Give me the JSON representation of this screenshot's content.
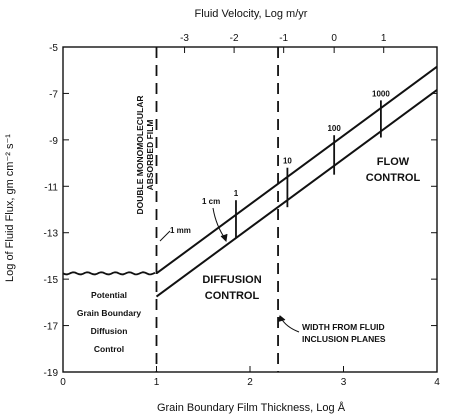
{
  "chart_data": {
    "type": "line",
    "xlabel": "Grain Boundary Film Thickness, Log Å",
    "ylabel": "Log of Fluid Flux, gm cm⁻² s⁻¹",
    "top_xlabel": "Fluid Velocity, Log m/yr",
    "xlim": [
      0,
      4
    ],
    "ylim": [
      -19,
      -5
    ],
    "x_ticks": [
      "0",
      "1",
      "2",
      "3",
      "4"
    ],
    "y_ticks": [
      "-5",
      "-7",
      "-9",
      "-11",
      "-13",
      "-15",
      "-17",
      "-19"
    ],
    "top_ticks": [
      {
        "label": "-3",
        "x": 1.3
      },
      {
        "label": "-2",
        "x": 1.83
      },
      {
        "label": "-1",
        "x": 2.36
      },
      {
        "label": "0",
        "x": 2.9
      },
      {
        "label": "1",
        "x": 3.43
      }
    ],
    "series": [
      {
        "x": [
          1.0,
          4.0
        ],
        "y": [
          -14.75,
          -5.85
        ]
      },
      {
        "x": [
          1.0,
          4.0
        ],
        "y": [
          -15.75,
          -6.85
        ]
      }
    ],
    "plateau": {
      "x": [
        0.0,
        1.0
      ],
      "y": -14.75
    },
    "dashed_lines": [
      1.0,
      2.3
    ],
    "tick_marks": [
      {
        "label": "1",
        "x": 1.85,
        "y1": -13.25,
        "y2": -11.6
      },
      {
        "label": "10",
        "x": 2.4,
        "y1": -11.9,
        "y2": -10.2
      },
      {
        "label": "100",
        "x": 2.9,
        "y1": -10.5,
        "y2": -8.8
      },
      {
        "label": "1000",
        "x": 3.4,
        "y1": -8.9,
        "y2": -7.3
      }
    ],
    "annotations": {
      "film_line1": "DOUBLE MONOMOLECULAR",
      "film_line2": "ABSORBED FILM",
      "one_cm": "1 cm",
      "one_mm": "1 mm",
      "flow1": "FLOW",
      "flow2": "CONTROL",
      "diff1": "DIFFUSION",
      "diff2": "CONTROL",
      "potential1": "Potential",
      "potential2": "Grain Boundary",
      "potential3": "Diffusion",
      "potential4": "Control",
      "width1": "WIDTH FROM FLUID",
      "width2": "INCLUSION PLANES"
    }
  }
}
